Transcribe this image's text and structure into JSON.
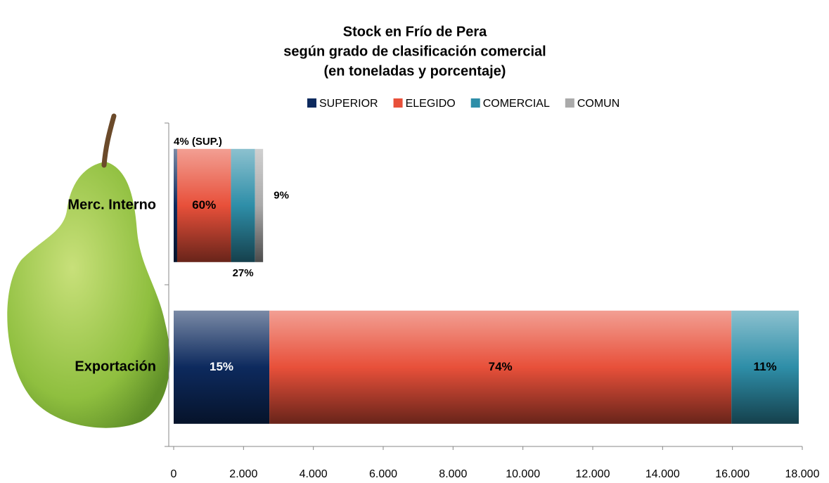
{
  "chart_data": {
    "type": "stacked-barh",
    "title": "Stock en Frío de Pera",
    "subtitle": [
      "según grado de clasificación comercial",
      "(en toneladas y porcentaje)"
    ],
    "categories": [
      "Merc. Interno",
      "Exportación"
    ],
    "series": [
      {
        "name": "SUPERIOR",
        "color": "#0d2a5e",
        "values": [
          100,
          2740
        ],
        "value_labels": [
          "4% (SUP.)",
          "15%"
        ]
      },
      {
        "name": "ELEGIDO",
        "color": "#e8503a",
        "values": [
          1540,
          13230
        ],
        "value_labels": [
          "60%",
          "74%"
        ]
      },
      {
        "name": "COMERCIAL",
        "color": "#2e8ea8",
        "values": [
          690,
          1930
        ],
        "value_labels": [
          "27%",
          "11%"
        ]
      },
      {
        "name": "COMUN",
        "color": "#aaaaaa",
        "values": [
          230,
          0
        ],
        "value_labels": [
          "9%",
          null
        ]
      }
    ],
    "xlim": [
      0,
      18000
    ],
    "xticks": [
      0,
      {
        "value": 2000,
        "label": "2.000"
      },
      {
        "value": 4000,
        "label": "4.000"
      },
      {
        "value": 6000,
        "label": "6.000"
      },
      {
        "value": 8000,
        "label": "8.000"
      },
      {
        "value": 10000,
        "label": "10.000"
      },
      {
        "value": 12000,
        "label": "12.000"
      },
      {
        "value": 14000,
        "label": "14.000"
      },
      {
        "value": 16000,
        "label": "16.000"
      },
      {
        "value": 18000,
        "label": "18.000"
      }
    ],
    "legend": "top"
  }
}
